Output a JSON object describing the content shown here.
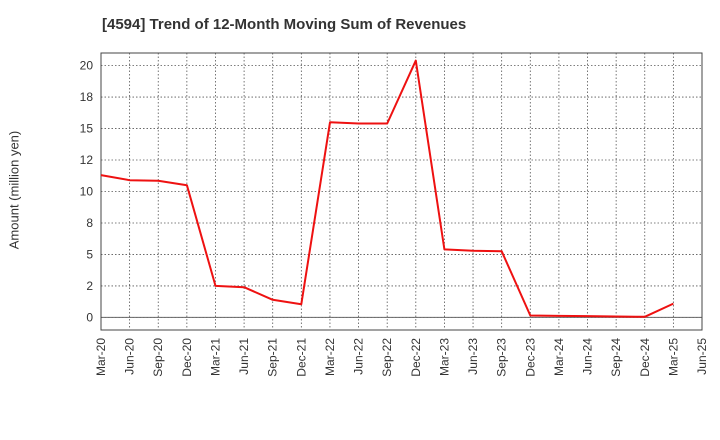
{
  "chart_data": {
    "type": "line",
    "title": "[4594]  Trend of 12-Month Moving Sum of Revenues",
    "ylabel": "Amount (million yen)",
    "xlabel": "",
    "grid": true,
    "ylim": [
      -1,
      21
    ],
    "y_ticks": [
      0,
      2,
      5,
      8,
      10,
      12,
      15,
      18,
      20
    ],
    "y_tick_values": [
      0,
      2.5,
      5,
      7.5,
      10,
      12.5,
      15,
      17.5,
      20
    ],
    "x_categories": [
      "Mar-20",
      "Jun-20",
      "Sep-20",
      "Dec-20",
      "Mar-21",
      "Jun-21",
      "Sep-21",
      "Dec-21",
      "Mar-22",
      "Jun-22",
      "Sep-22",
      "Dec-22",
      "Mar-23",
      "Jun-23",
      "Sep-23",
      "Dec-23",
      "Mar-24",
      "Jun-24",
      "Sep-24",
      "Dec-24",
      "Mar-25",
      "Jun-25"
    ],
    "line_color": "#ee1111",
    "series": [
      {
        "values": [
          11.3,
          10.9,
          10.85,
          10.5,
          2.5,
          2.4,
          1.4,
          1.05,
          15.5,
          15.4,
          15.4,
          20.4,
          5.4,
          5.3,
          5.25,
          0.15,
          0.12,
          0.1,
          0.07,
          0.05,
          1.1,
          null
        ]
      }
    ]
  }
}
